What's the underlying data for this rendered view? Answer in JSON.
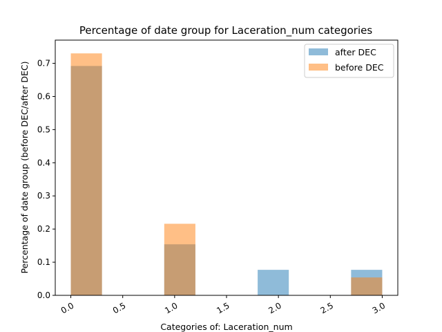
{
  "chart_data": {
    "type": "bar",
    "title": "Percentage of date group for Laceration_num categories",
    "xlabel": "Categories of: Laceration_num",
    "ylabel": "Percentage of date group (before DEC/after DEC)",
    "xlim": [
      -0.15,
      3.15
    ],
    "ylim": [
      0,
      0.77
    ],
    "xticks": [
      "0.0",
      "0.5",
      "1.0",
      "1.5",
      "2.0",
      "2.5",
      "3.0"
    ],
    "yticks": [
      "0.0",
      "0.1",
      "0.2",
      "0.3",
      "0.4",
      "0.5",
      "0.6",
      "0.7"
    ],
    "x_tick_values": [
      0,
      0.5,
      1,
      1.5,
      2,
      2.5,
      3
    ],
    "y_tick_values": [
      0,
      0.1,
      0.2,
      0.3,
      0.4,
      0.5,
      0.6,
      0.7
    ],
    "bin_width": 0.3,
    "categories": [
      0,
      1,
      2,
      3
    ],
    "series": [
      {
        "name": "after DEC",
        "values": [
          0.692,
          0.154,
          0.077,
          0.077
        ],
        "color": "#1f77b4",
        "alpha": 0.5
      },
      {
        "name": "before DEC",
        "values": [
          0.73,
          0.216,
          0.0,
          0.054
        ],
        "color": "#ff7f0e",
        "alpha": 0.5
      }
    ],
    "legend_position": "top-right",
    "grid": false
  }
}
